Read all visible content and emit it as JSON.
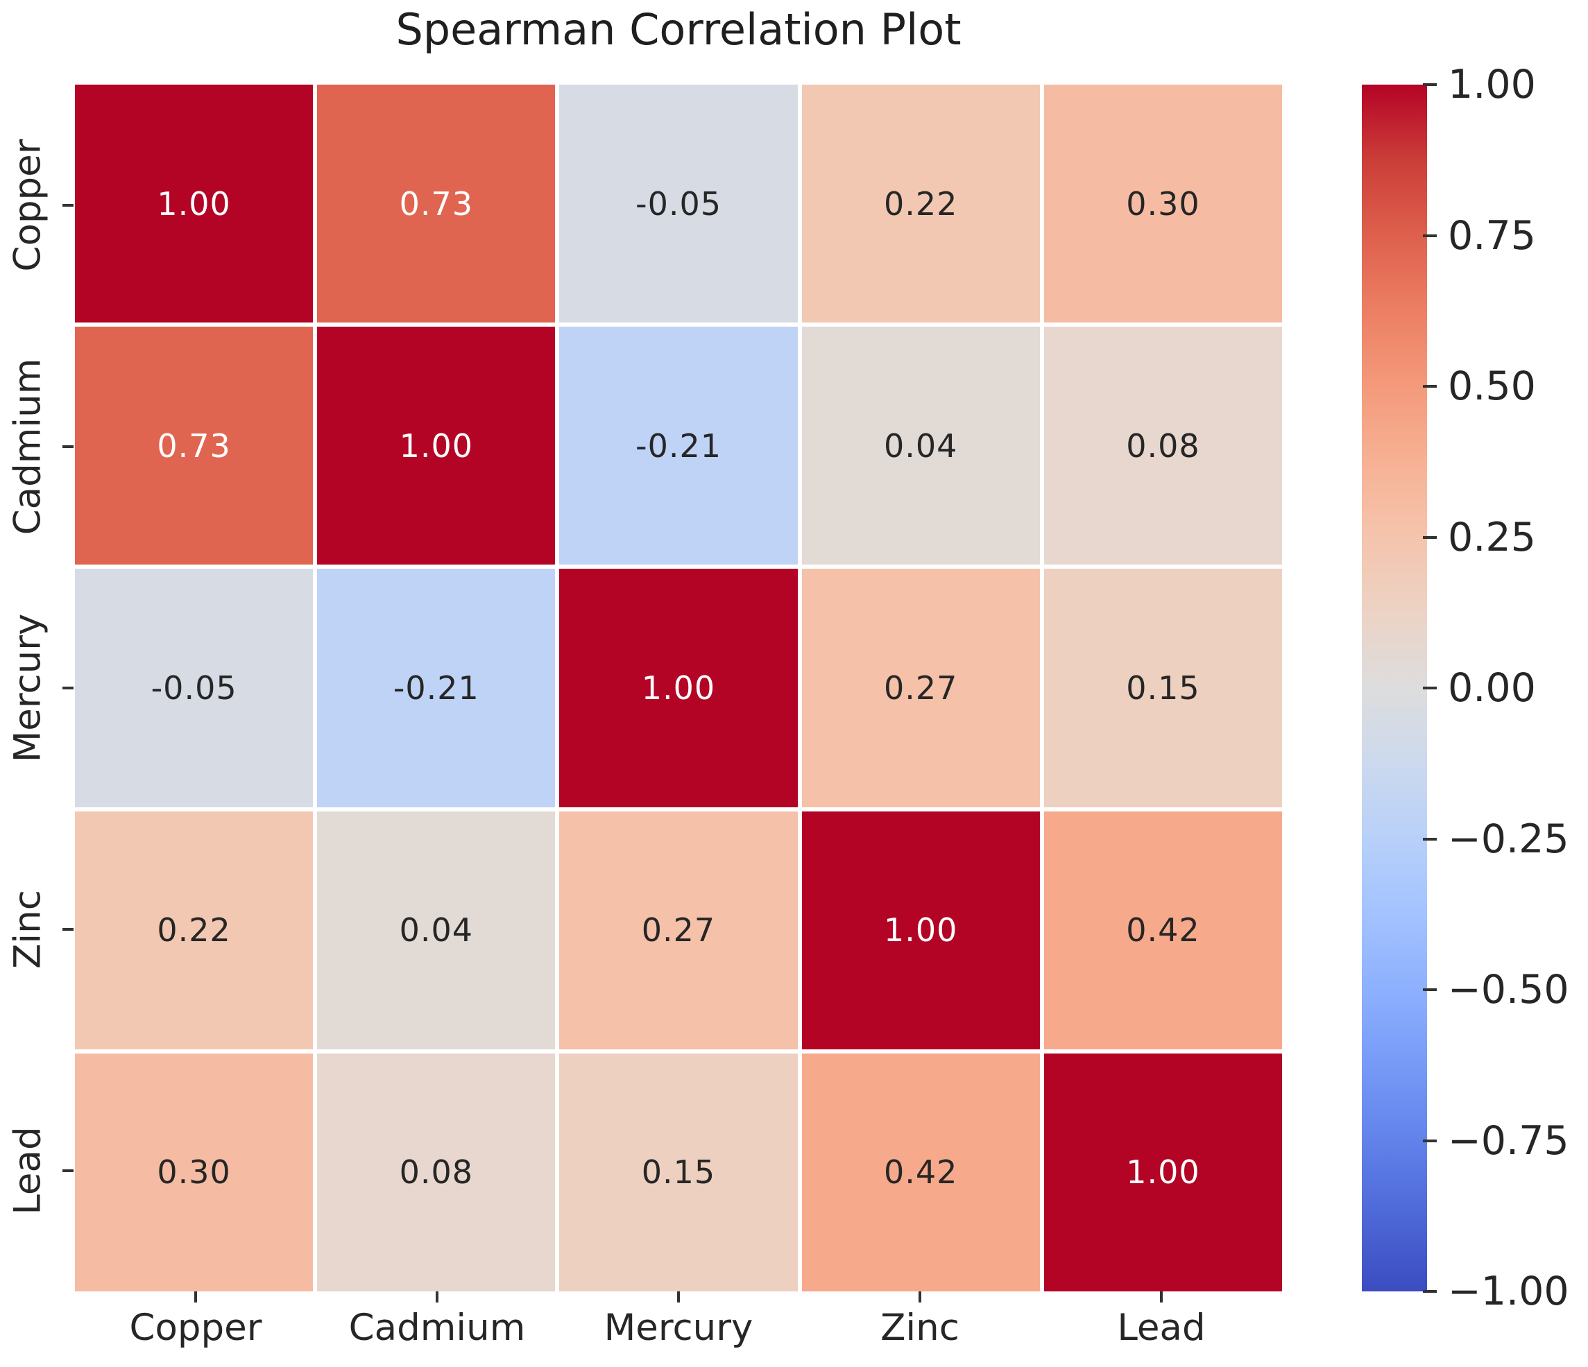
{
  "figure": {
    "background": "#ffffff"
  },
  "chart_data": {
    "type": "heatmap",
    "title": "Spearman Correlation Plot",
    "x_labels": [
      "Copper",
      "Cadmium",
      "Mercury",
      "Zinc",
      "Lead"
    ],
    "y_labels": [
      "Copper",
      "Cadmium",
      "Mercury",
      "Zinc",
      "Lead"
    ],
    "matrix": [
      [
        1.0,
        0.73,
        -0.05,
        0.22,
        0.3
      ],
      [
        0.73,
        1.0,
        -0.21,
        0.04,
        0.08
      ],
      [
        -0.05,
        -0.21,
        1.0,
        0.27,
        0.15
      ],
      [
        0.22,
        0.04,
        0.27,
        1.0,
        0.42
      ],
      [
        0.3,
        0.08,
        0.15,
        0.42,
        1.0
      ]
    ],
    "value_decimals": 2,
    "colormap": "coolwarm",
    "vmin": -1,
    "vmax": 1,
    "grid_on": false,
    "legend_position": "right-colorbar",
    "colorbar_ticks": [
      "1.00",
      "0.75",
      "0.50",
      "0.25",
      "0.00",
      "−0.25",
      "−0.50",
      "−0.75",
      "−1.00"
    ],
    "annotation_colors": {
      "light_text": "#ffffff",
      "dark_text": "#262626"
    }
  }
}
